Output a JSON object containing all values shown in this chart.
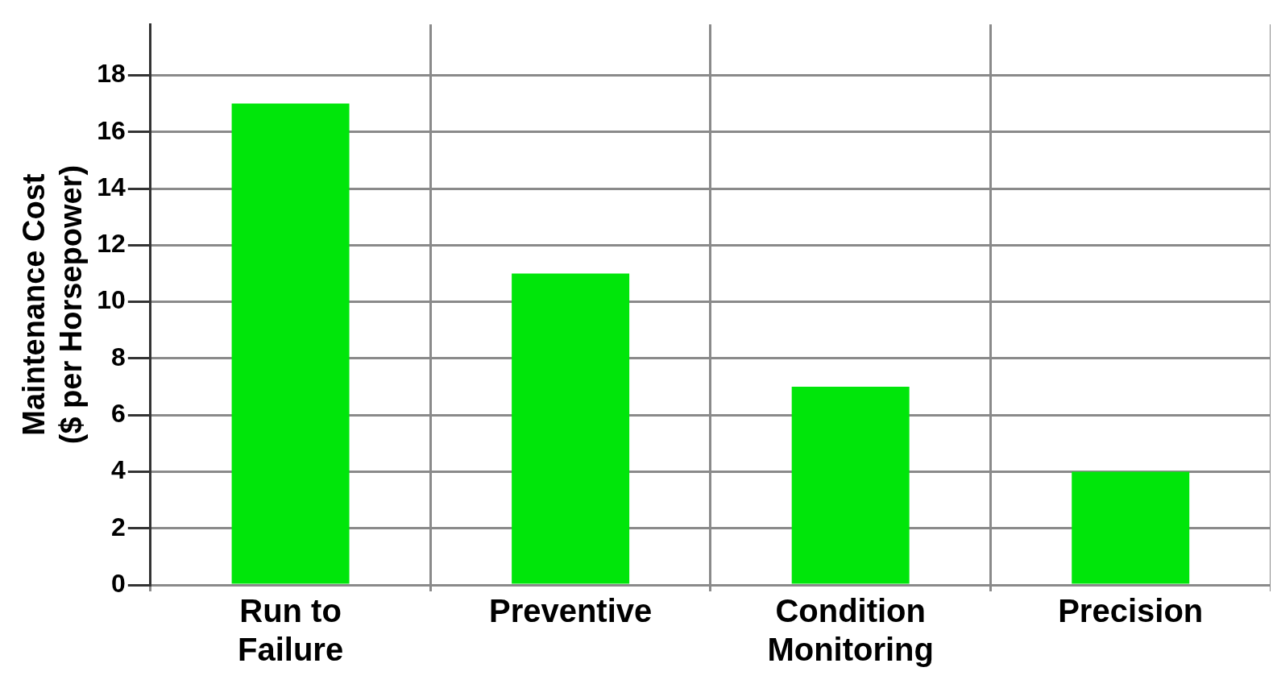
{
  "chart_data": {
    "type": "bar",
    "ylabel": "Maintenance Cost\n($ per Horsepower)",
    "categories": [
      "Run to Failure",
      "Preventive",
      "Condition Monitoring",
      "Precision"
    ],
    "values": [
      17,
      11,
      7,
      4
    ],
    "color": "#00e60a",
    "ylim": [
      0,
      19.8
    ],
    "yticks": [
      0,
      2,
      4,
      6,
      8,
      10,
      12,
      14,
      16,
      18
    ],
    "grid": true
  }
}
